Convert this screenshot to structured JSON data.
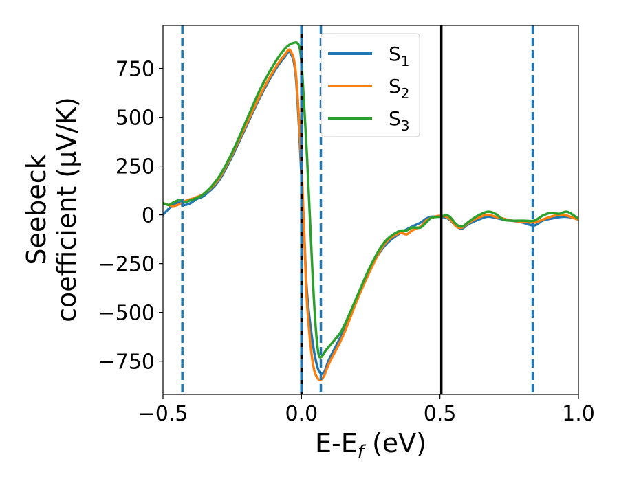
{
  "chart_data": {
    "type": "line",
    "title": "",
    "xlabel": {
      "main": "E-E",
      "sub": "f",
      "rest": " (eV)"
    },
    "ylabel": {
      "line1": "Seebeck",
      "line2": "coefficient  (μV/K)"
    },
    "xlim": [
      -0.5,
      1.0
    ],
    "ylim": [
      -920,
      970
    ],
    "xticks": [
      -0.5,
      0.0,
      0.5,
      1.0
    ],
    "xtick_labels": [
      "−0.5",
      "0.0",
      "0.5",
      "1.0"
    ],
    "yticks": [
      -750,
      -500,
      -250,
      0,
      250,
      500,
      750
    ],
    "ytick_labels": [
      "−750",
      "−500",
      "−250",
      "0",
      "250",
      "500",
      "750"
    ],
    "grid": false,
    "legend_position": "top-right",
    "series": [
      {
        "name": "S",
        "name_sub": "1",
        "color": "#1f77b4",
        "points": [
          [
            -0.5,
            0
          ],
          [
            -0.48,
            30
          ],
          [
            -0.46,
            55
          ],
          [
            -0.44,
            65
          ],
          [
            -0.43,
            55
          ],
          [
            -0.42,
            50
          ],
          [
            -0.4,
            60
          ],
          [
            -0.38,
            80
          ],
          [
            -0.35,
            100
          ],
          [
            -0.3,
            170
          ],
          [
            -0.25,
            300
          ],
          [
            -0.2,
            450
          ],
          [
            -0.15,
            600
          ],
          [
            -0.1,
            730
          ],
          [
            -0.06,
            810
          ],
          [
            -0.04,
            830
          ],
          [
            -0.02,
            700
          ],
          [
            0.0,
            200
          ],
          [
            0.01,
            -100
          ],
          [
            0.02,
            -400
          ],
          [
            0.04,
            -650
          ],
          [
            0.06,
            -790
          ],
          [
            0.08,
            -810
          ],
          [
            0.1,
            -740
          ],
          [
            0.15,
            -600
          ],
          [
            0.2,
            -430
          ],
          [
            0.25,
            -270
          ],
          [
            0.3,
            -160
          ],
          [
            0.35,
            -100
          ],
          [
            0.4,
            -60
          ],
          [
            0.43,
            -40
          ],
          [
            0.45,
            -20
          ],
          [
            0.47,
            -10
          ],
          [
            0.5,
            -10
          ],
          [
            0.53,
            -20
          ],
          [
            0.56,
            -60
          ],
          [
            0.58,
            -70
          ],
          [
            0.6,
            -50
          ],
          [
            0.63,
            -30
          ],
          [
            0.67,
            -10
          ],
          [
            0.7,
            -15
          ],
          [
            0.73,
            -25
          ],
          [
            0.76,
            -30
          ],
          [
            0.8,
            -40
          ],
          [
            0.84,
            -55
          ],
          [
            0.87,
            -30
          ],
          [
            0.9,
            -20
          ],
          [
            0.95,
            -10
          ],
          [
            1.0,
            -20
          ]
        ]
      },
      {
        "name": "S",
        "name_sub": "2",
        "color": "#ff7f0e",
        "points": [
          [
            -0.5,
            60
          ],
          [
            -0.48,
            50
          ],
          [
            -0.46,
            45
          ],
          [
            -0.44,
            55
          ],
          [
            -0.42,
            70
          ],
          [
            -0.4,
            80
          ],
          [
            -0.38,
            90
          ],
          [
            -0.35,
            110
          ],
          [
            -0.3,
            180
          ],
          [
            -0.25,
            310
          ],
          [
            -0.2,
            460
          ],
          [
            -0.15,
            610
          ],
          [
            -0.1,
            740
          ],
          [
            -0.06,
            820
          ],
          [
            -0.04,
            840
          ],
          [
            -0.02,
            720
          ],
          [
            0.0,
            250
          ],
          [
            0.01,
            -100
          ],
          [
            0.02,
            -450
          ],
          [
            0.04,
            -750
          ],
          [
            0.06,
            -840
          ],
          [
            0.08,
            -830
          ],
          [
            0.1,
            -760
          ],
          [
            0.15,
            -620
          ],
          [
            0.2,
            -440
          ],
          [
            0.25,
            -280
          ],
          [
            0.3,
            -150
          ],
          [
            0.35,
            -95
          ],
          [
            0.38,
            -100
          ],
          [
            0.4,
            -80
          ],
          [
            0.43,
            -60
          ],
          [
            0.45,
            -30
          ],
          [
            0.47,
            -15
          ],
          [
            0.5,
            -5
          ],
          [
            0.53,
            -15
          ],
          [
            0.56,
            -60
          ],
          [
            0.58,
            -65
          ],
          [
            0.6,
            -45
          ],
          [
            0.63,
            -20
          ],
          [
            0.67,
            0
          ],
          [
            0.7,
            -10
          ],
          [
            0.73,
            -20
          ],
          [
            0.76,
            -30
          ],
          [
            0.8,
            -35
          ],
          [
            0.84,
            -40
          ],
          [
            0.87,
            -25
          ],
          [
            0.9,
            -10
          ],
          [
            0.93,
            0
          ],
          [
            0.96,
            -5
          ],
          [
            1.0,
            -25
          ]
        ]
      },
      {
        "name": "S",
        "name_sub": "3",
        "color": "#2ca02c",
        "points": [
          [
            -0.5,
            60
          ],
          [
            -0.48,
            50
          ],
          [
            -0.46,
            65
          ],
          [
            -0.44,
            75
          ],
          [
            -0.42,
            65
          ],
          [
            -0.4,
            75
          ],
          [
            -0.38,
            85
          ],
          [
            -0.35,
            110
          ],
          [
            -0.3,
            190
          ],
          [
            -0.25,
            320
          ],
          [
            -0.2,
            480
          ],
          [
            -0.15,
            640
          ],
          [
            -0.1,
            770
          ],
          [
            -0.06,
            850
          ],
          [
            -0.03,
            880
          ],
          [
            -0.01,
            870
          ],
          [
            0.0,
            780
          ],
          [
            0.01,
            550
          ],
          [
            0.02,
            300
          ],
          [
            0.03,
            0
          ],
          [
            0.04,
            -300
          ],
          [
            0.05,
            -550
          ],
          [
            0.06,
            -700
          ],
          [
            0.07,
            -730
          ],
          [
            0.09,
            -690
          ],
          [
            0.12,
            -640
          ],
          [
            0.15,
            -580
          ],
          [
            0.2,
            -420
          ],
          [
            0.25,
            -260
          ],
          [
            0.3,
            -140
          ],
          [
            0.35,
            -85
          ],
          [
            0.38,
            -80
          ],
          [
            0.4,
            -65
          ],
          [
            0.43,
            -65
          ],
          [
            0.45,
            -40
          ],
          [
            0.47,
            -15
          ],
          [
            0.5,
            -10
          ],
          [
            0.53,
            -5
          ],
          [
            0.56,
            -50
          ],
          [
            0.58,
            -60
          ],
          [
            0.6,
            -40
          ],
          [
            0.63,
            -10
          ],
          [
            0.67,
            15
          ],
          [
            0.7,
            5
          ],
          [
            0.73,
            -25
          ],
          [
            0.76,
            -30
          ],
          [
            0.8,
            -30
          ],
          [
            0.84,
            -30
          ],
          [
            0.87,
            -5
          ],
          [
            0.9,
            10
          ],
          [
            0.93,
            5
          ],
          [
            0.96,
            15
          ],
          [
            1.0,
            -20
          ]
        ]
      }
    ],
    "vlines": [
      {
        "x": -0.43,
        "style": "dashed",
        "color": "#1f77b4"
      },
      {
        "x": 0.0,
        "style": "solid",
        "color": "#000000"
      },
      {
        "x": 0.0,
        "style": "dashed",
        "color": "#1f77b4"
      },
      {
        "x": 0.07,
        "style": "dashed",
        "color": "#1f77b4"
      },
      {
        "x": 0.505,
        "style": "solid",
        "color": "#000000"
      },
      {
        "x": 0.835,
        "style": "dashed",
        "color": "#1f77b4"
      }
    ]
  }
}
